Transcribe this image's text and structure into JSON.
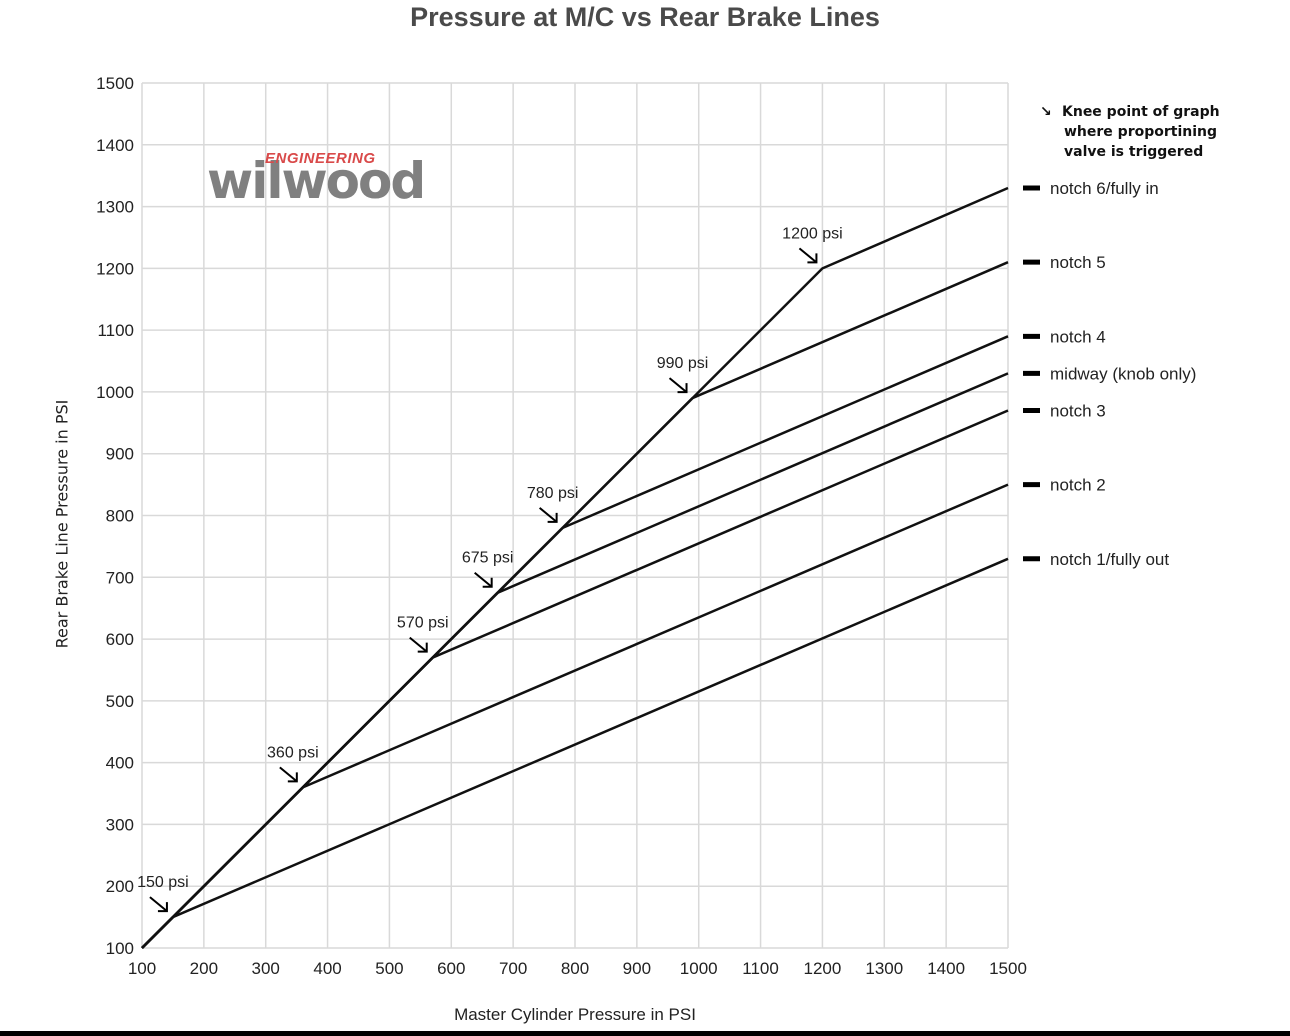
{
  "chart_data": {
    "type": "line",
    "title": "Pressure at M/C vs Rear Brake Lines",
    "xlabel": "Master Cylinder Pressure in PSI",
    "ylabel": "Rear Brake Line Pressure in PSI",
    "xlim": [
      100,
      1500
    ],
    "ylim": [
      100,
      1500
    ],
    "x_ticks": [
      100,
      200,
      300,
      400,
      500,
      600,
      700,
      800,
      900,
      1000,
      1100,
      1200,
      1300,
      1400,
      1500
    ],
    "y_ticks": [
      100,
      200,
      300,
      400,
      500,
      600,
      700,
      800,
      900,
      1000,
      1100,
      1200,
      1300,
      1400,
      1500
    ],
    "grid": true,
    "legend_placement": "right",
    "series": [
      {
        "name": "notch 6/fully in",
        "points": [
          [
            100,
            100
          ],
          [
            1200,
            1200
          ],
          [
            1500,
            1330
          ]
        ]
      },
      {
        "name": "notch 5",
        "points": [
          [
            100,
            100
          ],
          [
            990,
            990
          ],
          [
            1500,
            1210
          ]
        ]
      },
      {
        "name": "notch 4",
        "points": [
          [
            100,
            100
          ],
          [
            780,
            780
          ],
          [
            1500,
            1090
          ]
        ]
      },
      {
        "name": "midway (knob only)",
        "points": [
          [
            100,
            100
          ],
          [
            675,
            675
          ],
          [
            1500,
            1030
          ]
        ]
      },
      {
        "name": "notch 3",
        "points": [
          [
            100,
            100
          ],
          [
            570,
            570
          ],
          [
            1500,
            970
          ]
        ]
      },
      {
        "name": "notch 2",
        "points": [
          [
            100,
            100
          ],
          [
            360,
            360
          ],
          [
            1500,
            850
          ]
        ]
      },
      {
        "name": "notch 1/fully out",
        "points": [
          [
            100,
            100
          ],
          [
            150,
            150
          ],
          [
            1500,
            730
          ]
        ]
      }
    ],
    "annotations": [
      {
        "text": "150 psi",
        "x": 150,
        "y": 150
      },
      {
        "text": "360 psi",
        "x": 360,
        "y": 360
      },
      {
        "text": "570 psi",
        "x": 570,
        "y": 570
      },
      {
        "text": "675 psi",
        "x": 675,
        "y": 675
      },
      {
        "text": "780 psi",
        "x": 780,
        "y": 780
      },
      {
        "text": "990 psi",
        "x": 990,
        "y": 990
      },
      {
        "text": "1200 psi",
        "x": 1200,
        "y": 1200
      }
    ],
    "note": [
      "Knee point of graph",
      "where proportining",
      "valve is triggered"
    ]
  },
  "logo": {
    "small": "ENGINEERING",
    "word": "wilwood"
  },
  "colors": {
    "line": "#111111",
    "grid": "#d9d9d9",
    "logo": "#808080",
    "logo_accent": "#d94a4a"
  }
}
